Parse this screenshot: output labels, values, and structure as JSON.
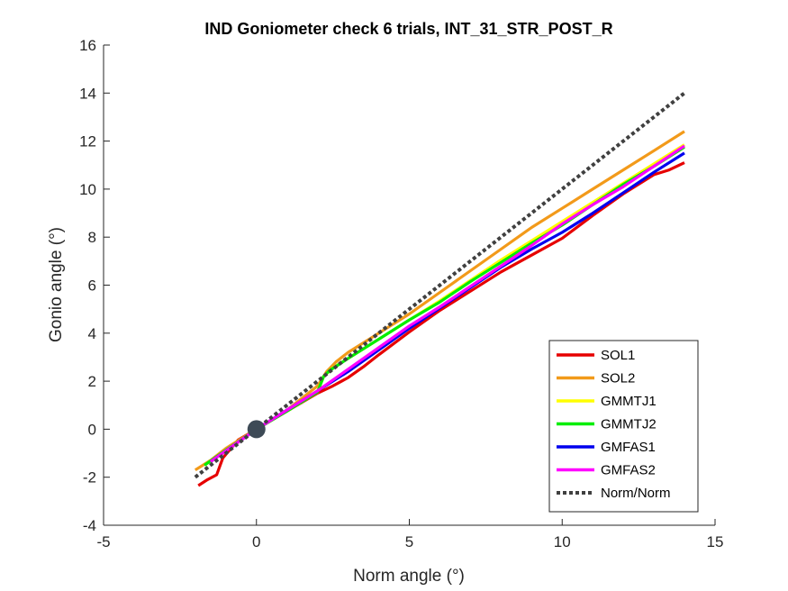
{
  "chart_data": {
    "type": "line",
    "title": "IND Goniometer check 6 trials, INT_31_STR_POST_R",
    "xlabel": "Norm angle (°)",
    "ylabel": "Gonio angle (°)",
    "xlim": [
      -5,
      15
    ],
    "ylim": [
      -4,
      16
    ],
    "xticks": [
      -5,
      0,
      5,
      10,
      15
    ],
    "yticks": [
      -4,
      -2,
      0,
      2,
      4,
      6,
      8,
      10,
      12,
      14,
      16
    ],
    "grid": false,
    "legend_position": "bottom-right",
    "series": [
      {
        "name": "SOL1",
        "color": "#e60000",
        "style": "solid",
        "points": [
          [
            -1.9,
            -2.35
          ],
          [
            -1.6,
            -2.1
          ],
          [
            -1.3,
            -1.9
          ],
          [
            -1.1,
            -1.2
          ],
          [
            -0.6,
            -0.45
          ],
          [
            0,
            0
          ],
          [
            1,
            0.75
          ],
          [
            2,
            1.5
          ],
          [
            2.5,
            1.8
          ],
          [
            3,
            2.15
          ],
          [
            3.5,
            2.6
          ],
          [
            4,
            3.1
          ],
          [
            5,
            4.05
          ],
          [
            6,
            4.95
          ],
          [
            7,
            5.75
          ],
          [
            8,
            6.55
          ],
          [
            9,
            7.25
          ],
          [
            10,
            7.95
          ],
          [
            11,
            8.9
          ],
          [
            12,
            9.8
          ],
          [
            13,
            10.6
          ],
          [
            13.5,
            10.8
          ],
          [
            14,
            11.1
          ]
        ]
      },
      {
        "name": "SOL2",
        "color": "#f29a1a",
        "style": "solid",
        "points": [
          [
            -2.0,
            -1.7
          ],
          [
            -1.5,
            -1.3
          ],
          [
            -1.0,
            -0.8
          ],
          [
            0,
            0
          ],
          [
            1,
            0.8
          ],
          [
            2,
            1.8
          ],
          [
            2.3,
            2.4
          ],
          [
            2.6,
            2.8
          ],
          [
            3,
            3.2
          ],
          [
            4,
            4.0
          ],
          [
            5,
            4.8
          ],
          [
            6,
            5.7
          ],
          [
            7,
            6.6
          ],
          [
            8,
            7.5
          ],
          [
            9,
            8.4
          ],
          [
            10,
            9.2
          ],
          [
            11,
            10.0
          ],
          [
            12,
            10.8
          ],
          [
            13,
            11.6
          ],
          [
            14,
            12.4
          ]
        ]
      },
      {
        "name": "GMMTJ1",
        "color": "#ffff00",
        "style": "solid",
        "points": [
          [
            -1.7,
            -1.5
          ],
          [
            -1.2,
            -1.05
          ],
          [
            0,
            0
          ],
          [
            1,
            0.75
          ],
          [
            2,
            1.55
          ],
          [
            2.2,
            2.2
          ],
          [
            2.5,
            2.55
          ],
          [
            3,
            2.95
          ],
          [
            4,
            3.75
          ],
          [
            5,
            4.55
          ],
          [
            6,
            5.35
          ],
          [
            7,
            6.2
          ],
          [
            8,
            7.05
          ],
          [
            9,
            7.85
          ],
          [
            10,
            8.65
          ],
          [
            11,
            9.45
          ],
          [
            12,
            10.25
          ],
          [
            13,
            11.05
          ],
          [
            14,
            11.85
          ]
        ]
      },
      {
        "name": "GMMTJ2",
        "color": "#00ee00",
        "style": "solid",
        "points": [
          [
            -1.7,
            -1.5
          ],
          [
            -1.2,
            -1.05
          ],
          [
            0,
            0
          ],
          [
            1,
            0.75
          ],
          [
            2,
            1.55
          ],
          [
            2.2,
            2.2
          ],
          [
            2.4,
            2.45
          ],
          [
            3,
            2.95
          ],
          [
            4,
            3.75
          ],
          [
            5,
            4.55
          ],
          [
            6,
            5.3
          ],
          [
            7,
            6.15
          ],
          [
            8,
            6.95
          ],
          [
            9,
            7.75
          ],
          [
            10,
            8.5
          ],
          [
            11,
            9.35
          ],
          [
            12,
            10.2
          ],
          [
            13,
            10.95
          ],
          [
            14,
            11.75
          ]
        ]
      },
      {
        "name": "GMFAS1",
        "color": "#0000ee",
        "style": "solid",
        "points": [
          [
            -1.5,
            -1.35
          ],
          [
            -1.0,
            -0.9
          ],
          [
            0,
            0
          ],
          [
            1,
            0.8
          ],
          [
            2,
            1.6
          ],
          [
            3,
            2.4
          ],
          [
            4,
            3.3
          ],
          [
            5,
            4.2
          ],
          [
            6,
            5.05
          ],
          [
            7,
            5.9
          ],
          [
            8,
            6.75
          ],
          [
            9,
            7.5
          ],
          [
            10,
            8.2
          ],
          [
            11,
            9.0
          ],
          [
            12,
            9.85
          ],
          [
            13,
            10.7
          ],
          [
            14,
            11.5
          ]
        ]
      },
      {
        "name": "GMFAS2",
        "color": "#ff00ff",
        "style": "solid",
        "points": [
          [
            -1.5,
            -1.35
          ],
          [
            -1.0,
            -0.9
          ],
          [
            0,
            0
          ],
          [
            1,
            0.8
          ],
          [
            2,
            1.6
          ],
          [
            3,
            2.5
          ],
          [
            4,
            3.4
          ],
          [
            5,
            4.3
          ],
          [
            6,
            5.1
          ],
          [
            7,
            5.95
          ],
          [
            8,
            6.8
          ],
          [
            9,
            7.65
          ],
          [
            10,
            8.55
          ],
          [
            11,
            9.35
          ],
          [
            12,
            10.1
          ],
          [
            13,
            10.95
          ],
          [
            14,
            11.8
          ]
        ]
      },
      {
        "name": "Norm/Norm",
        "color": "#404040",
        "style": "dotted",
        "points": [
          [
            -2,
            -2
          ],
          [
            14,
            14
          ]
        ]
      }
    ],
    "marker": {
      "x": 0,
      "y": 0,
      "color": "#3d4a56"
    }
  }
}
